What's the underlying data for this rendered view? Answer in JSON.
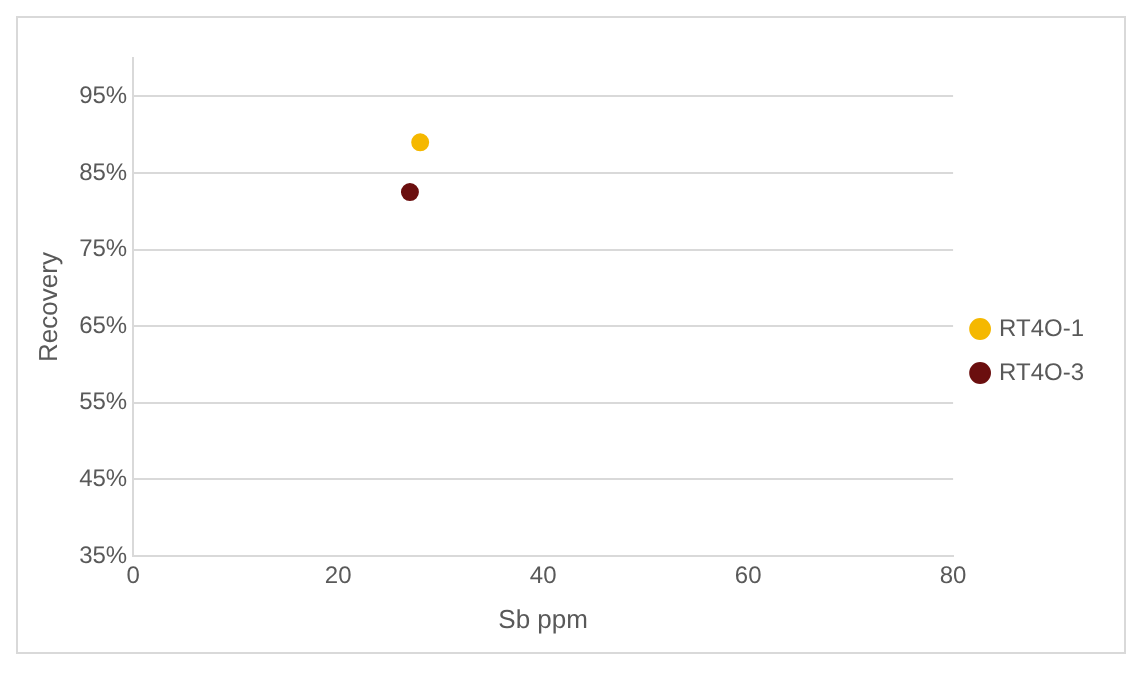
{
  "chart_data": {
    "type": "scatter",
    "xlabel": "Sb ppm",
    "ylabel": "Recovery",
    "series": [
      {
        "name": "RT4O-1",
        "color": "#f5b800",
        "x": [
          28
        ],
        "values": [
          89
        ]
      },
      {
        "name": "RT4O-3",
        "color": "#6b0f0f",
        "x": [
          27
        ],
        "values": [
          82.5
        ]
      }
    ],
    "xlim": [
      0,
      80
    ],
    "xticks": [
      0,
      20,
      40,
      60,
      80
    ],
    "ylim": [
      35,
      100
    ],
    "yticks": [
      {
        "value": 35,
        "label": "35%"
      },
      {
        "value": 45,
        "label": "45%"
      },
      {
        "value": 55,
        "label": "55%"
      },
      {
        "value": 65,
        "label": "65%"
      },
      {
        "value": 75,
        "label": "75%"
      },
      {
        "value": 85,
        "label": "85%"
      },
      {
        "value": 95,
        "label": "95%"
      }
    ],
    "grid": "y",
    "legend": "right",
    "marker": "circle"
  }
}
